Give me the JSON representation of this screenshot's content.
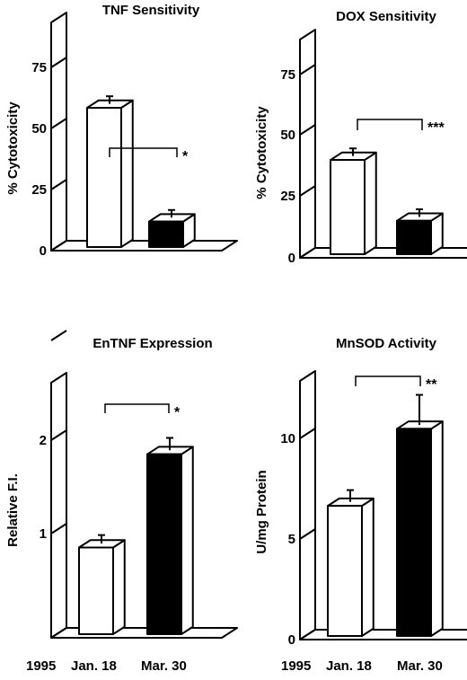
{
  "chart_data": [
    {
      "type": "bar",
      "title": "TNF Sensitivity",
      "ylabel": "% Cytotoxicity",
      "xlabel": "",
      "categories": [
        "Jan. 18",
        "Mar. 30"
      ],
      "values": [
        54,
        11
      ],
      "errors": [
        3,
        3
      ],
      "bar_colors": [
        "#ffffff",
        "#000000"
      ],
      "yticks": [
        "0",
        "25",
        "50",
        "75"
      ],
      "ylim": [
        0,
        90
      ],
      "significance": "*",
      "grid": false
    },
    {
      "type": "bar",
      "title": "DOX Sensitivity",
      "ylabel": "% Cytotoxicity",
      "xlabel": "",
      "categories": [
        "Jan. 18",
        "Mar. 30"
      ],
      "values": [
        37,
        14
      ],
      "errors": [
        3,
        3
      ],
      "bar_colors": [
        "#ffffff",
        "#000000"
      ],
      "yticks": [
        "0",
        "25",
        "50",
        "75"
      ],
      "ylim": [
        0,
        90
      ],
      "significance": "***",
      "grid": false
    },
    {
      "type": "bar",
      "title": "EnTNF Expression",
      "ylabel": "Relative F.I.",
      "xlabel": "",
      "categories": [
        "Jan. 18",
        "Mar. 30"
      ],
      "values": [
        0.92,
        1.87
      ],
      "errors": [
        0.09,
        0.13
      ],
      "bar_colors": [
        "#ffffff",
        "#000000"
      ],
      "yticks": [
        "1",
        "2"
      ],
      "ylim": [
        0,
        2.7
      ],
      "significance": "*",
      "grid": false
    },
    {
      "type": "bar",
      "title": "MnSOD Activity",
      "ylabel": "U/mg Protein",
      "xlabel": "",
      "categories": [
        "Jan. 18",
        "Mar. 30"
      ],
      "values": [
        6.6,
        10.4
      ],
      "errors": [
        0.6,
        1.5
      ],
      "bar_colors": [
        "#ffffff",
        "#000000"
      ],
      "yticks": [
        "0",
        "5",
        "10"
      ],
      "ylim": [
        0,
        13.3
      ],
      "significance": "**",
      "grid": false
    }
  ],
  "xaxis_labels": {
    "year": "1995",
    "jan": "Jan. 18",
    "mar": "Mar. 30"
  }
}
